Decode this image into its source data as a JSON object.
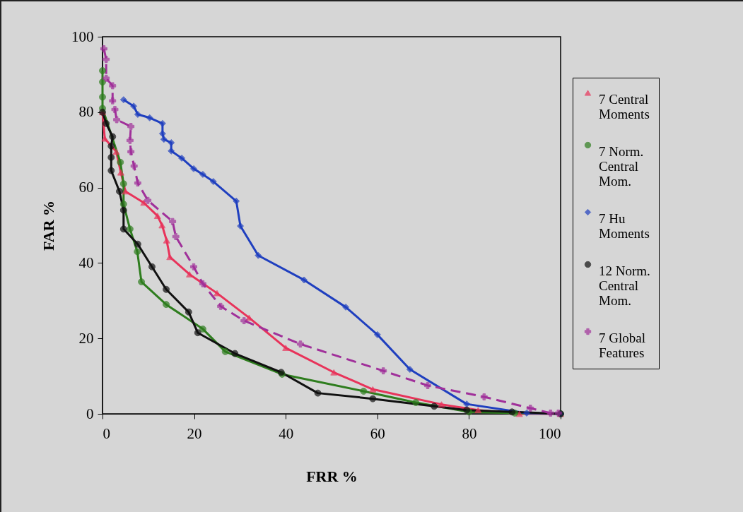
{
  "chart_data": {
    "type": "line",
    "xlabel": "FRR %",
    "ylabel": "FAR %",
    "xlim": [
      0,
      100
    ],
    "ylim": [
      0,
      100
    ],
    "xticks": [
      0,
      20,
      40,
      60,
      80,
      100
    ],
    "yticks": [
      0,
      20,
      40,
      60,
      80,
      100
    ],
    "grid": false,
    "legend": "right",
    "series": [
      {
        "name": "7 Central Moments",
        "color": "#e8335a",
        "marker": "triangle",
        "line_style": "solid",
        "x": [
          0,
          0.5,
          3,
          4,
          5,
          9,
          12,
          13,
          14,
          14.7,
          19,
          25,
          32,
          40,
          50.5,
          59,
          74,
          82,
          91,
          100
        ],
        "values": [
          80,
          73,
          69.5,
          64,
          59,
          56,
          52.5,
          50,
          46,
          41.6,
          37,
          32,
          25.5,
          17.5,
          11,
          6.5,
          2.5,
          1,
          0,
          0
        ]
      },
      {
        "name": "7 Norm. Central Mom.",
        "color": "#2e7d1e",
        "marker": "circle",
        "line_style": "solid",
        "x": [
          0,
          0,
          0,
          0,
          3.9,
          4.6,
          4.6,
          6,
          7.6,
          8.5,
          13.9,
          21.9,
          26.8,
          39.2,
          57,
          68.4,
          80,
          90,
          100
        ],
        "values": [
          91,
          88,
          84,
          81,
          66.7,
          61,
          55.6,
          49,
          43,
          35,
          29,
          22.5,
          16.5,
          10.5,
          6,
          3,
          0.5,
          0.2,
          0
        ]
      },
      {
        "name": "7 Hu Moments",
        "color": "#1f3fbf",
        "marker": "diamond",
        "line_style": "solid",
        "x": [
          4.6,
          6.8,
          7.7,
          10.3,
          13.1,
          13.1,
          13.4,
          15,
          15,
          17.3,
          19.9,
          21.9,
          24.2,
          29.2,
          30.1,
          34,
          44,
          53.1,
          60,
          67.1,
          79.5,
          92.6,
          100
        ],
        "values": [
          83.3,
          81.6,
          79.4,
          78.5,
          77,
          74.3,
          72.8,
          71.9,
          69.7,
          67.8,
          65,
          63.5,
          61.6,
          56.4,
          49.8,
          42,
          35.5,
          28.3,
          21,
          11.8,
          2.6,
          0.2,
          0
        ]
      },
      {
        "name": "12 Norm. Central Mom.",
        "color": "#111111",
        "marker": "circle",
        "line_style": "solid",
        "x": [
          0,
          0.8,
          2.2,
          1.9,
          1.9,
          1.9,
          3.7,
          4.6,
          4.6,
          7.7,
          10.8,
          13.9,
          18.8,
          20.8,
          28.9,
          39,
          47,
          59,
          72.4,
          79.5,
          89.4,
          100
        ],
        "values": [
          80,
          77,
          73.5,
          71,
          68,
          64.5,
          59,
          54,
          49,
          45,
          39,
          33,
          27,
          21.5,
          16,
          11,
          5.5,
          4,
          2,
          1,
          0.5,
          0
        ]
      },
      {
        "name": "7 Global Features",
        "color": "#a0309a",
        "marker": "cross",
        "line_style": "dashed",
        "x": [
          0.3,
          0.8,
          0.8,
          2.2,
          2.2,
          2.7,
          3.1,
          6.2,
          6,
          6.2,
          6.9,
          7.7,
          9.9,
          15.3,
          16,
          19.9,
          21.9,
          25.8,
          30.9,
          43.2,
          61.3,
          71,
          83.3,
          93.4,
          97.8,
          99.5
        ],
        "values": [
          96.8,
          94,
          89,
          87,
          83,
          80.7,
          78,
          76.2,
          72.5,
          69.5,
          65.7,
          61.2,
          56.6,
          51,
          47,
          39,
          34.5,
          28.5,
          24.7,
          18.5,
          11.4,
          7.5,
          4.5,
          1.5,
          0.2,
          0.2
        ]
      }
    ]
  }
}
